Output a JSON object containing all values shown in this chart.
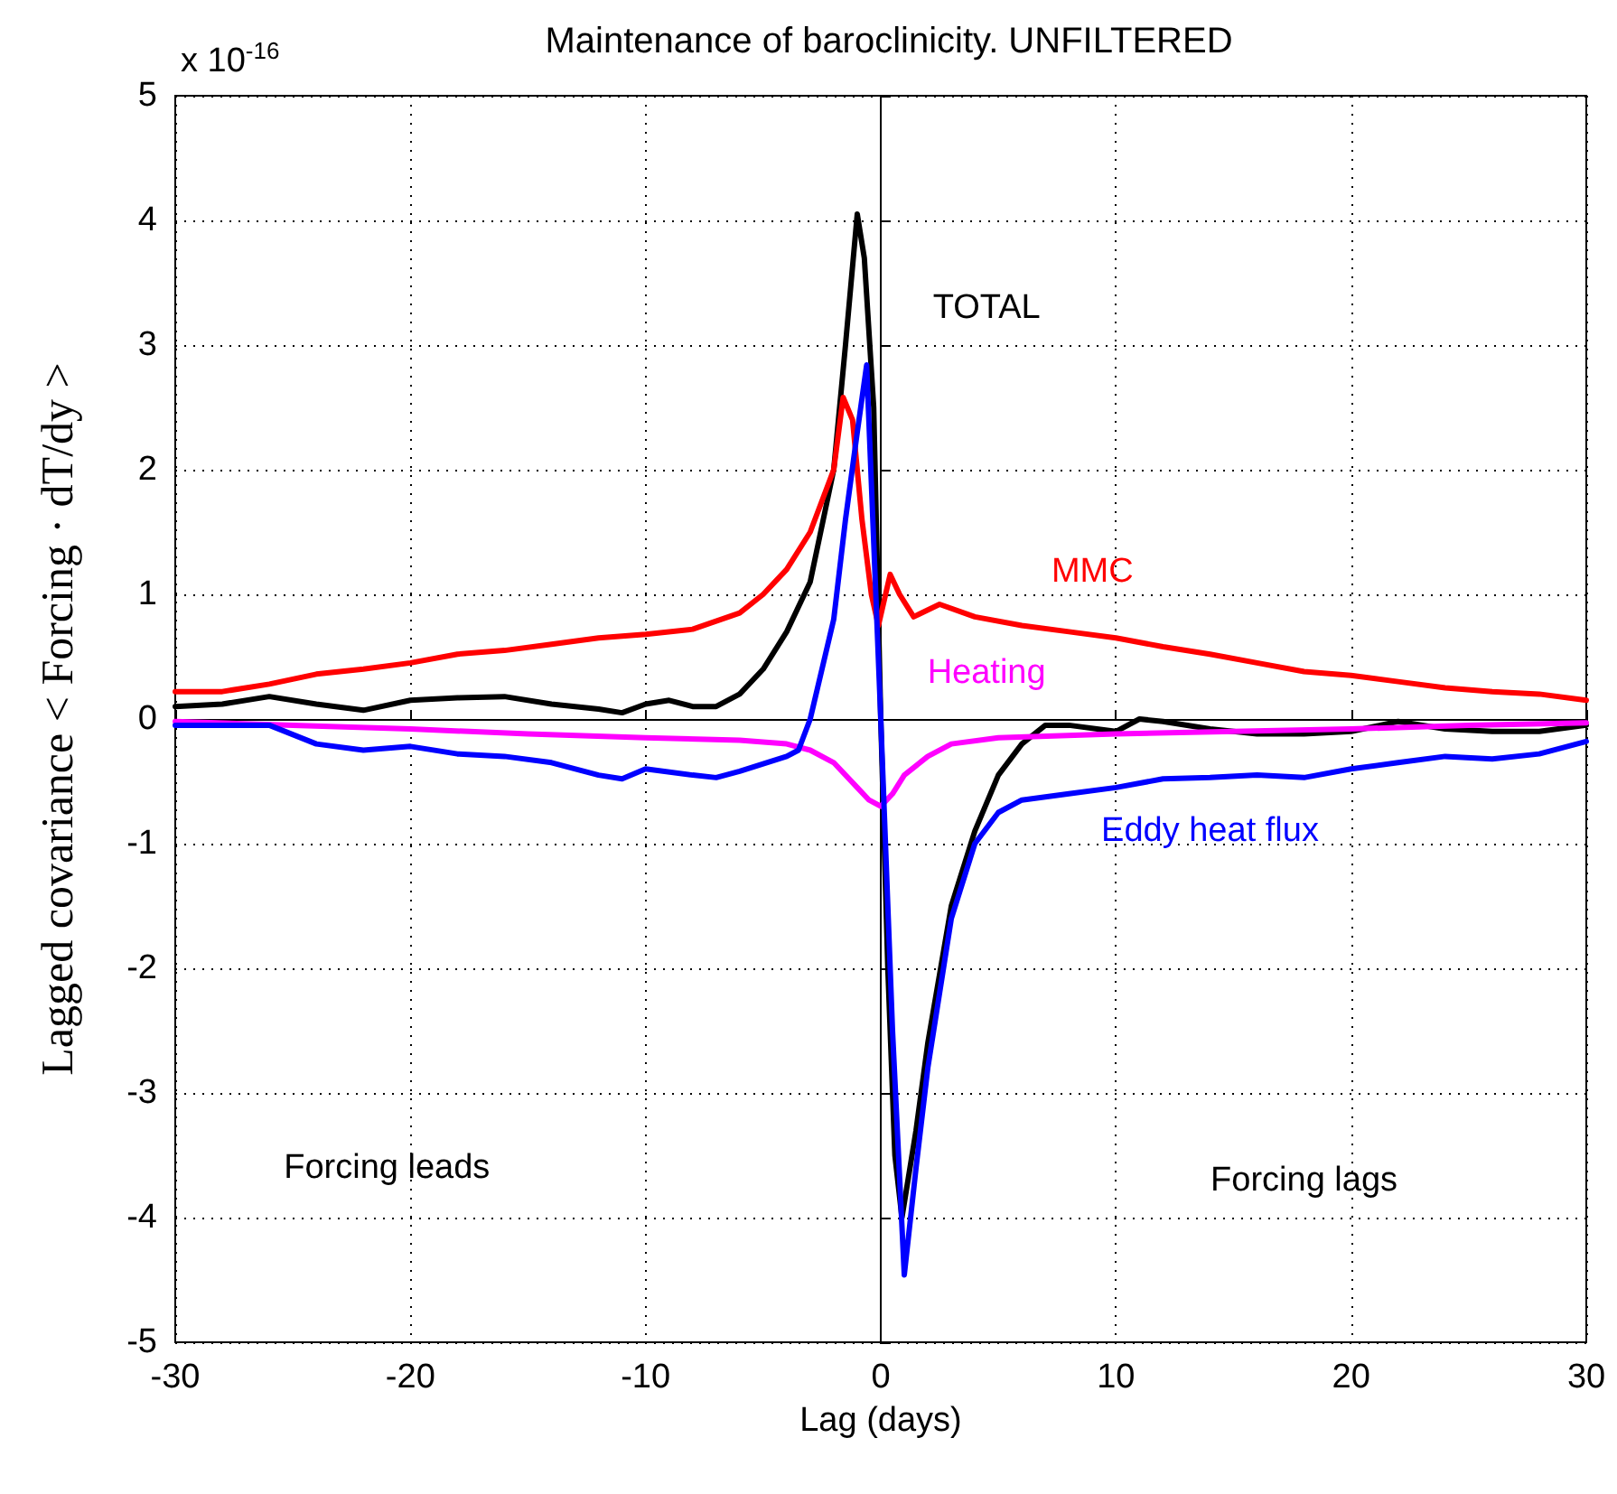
{
  "chart_data": {
    "type": "line",
    "title": "Maintenance of baroclinicity. UNFILTERED",
    "xlabel": "Lag (days)",
    "ylabel": "Lagged covariance < Forcing · dT/dy >",
    "annotations": [
      "x 10$^{-16}$",
      "Forcing leads",
      "Forcing lags"
    ],
    "xlim": [
      -30,
      30
    ],
    "xticks": [
      -30,
      -20,
      -10,
      0,
      10,
      20,
      30
    ],
    "ylim": [
      -5,
      5
    ],
    "yticks": [
      -5,
      -4,
      -3,
      -2,
      -1,
      0,
      1,
      2,
      3,
      4,
      5
    ],
    "grid": true,
    "line_style": "solid",
    "marker": "none",
    "series": [
      {
        "name": "TOTAL",
        "color": "#000000",
        "x": [
          -30,
          -28,
          -26,
          -24,
          -22,
          -20,
          -18,
          -16,
          -14,
          -12,
          -11,
          -10,
          -9,
          -8,
          -7,
          -6,
          -5,
          -4,
          -3,
          -2,
          -1.5,
          -1,
          -0.7,
          -0.3,
          0,
          0.3,
          0.6,
          0.9,
          1.5,
          2,
          3,
          4,
          5,
          6,
          7,
          8,
          10,
          11,
          12,
          14,
          16,
          18,
          20,
          22,
          24,
          26,
          28,
          30
        ],
        "values": [
          0.1,
          0.12,
          0.18,
          0.12,
          0.07,
          0.15,
          0.17,
          0.18,
          0.12,
          0.08,
          0.05,
          0.12,
          0.15,
          0.1,
          0.1,
          0.2,
          0.4,
          0.7,
          1.1,
          2.0,
          3.0,
          4.05,
          3.7,
          2.5,
          0,
          -2,
          -3.5,
          -4.0,
          -3.3,
          -2.6,
          -1.5,
          -0.9,
          -0.45,
          -0.2,
          -0.05,
          -0.05,
          -0.1,
          0,
          -0.02,
          -0.08,
          -0.12,
          -0.12,
          -0.1,
          -0.02,
          -0.08,
          -0.1,
          -0.1,
          -0.05
        ]
      },
      {
        "name": "MMC",
        "color": "#ff0000",
        "x": [
          -30,
          -28,
          -26,
          -24,
          -22,
          -20,
          -18,
          -16,
          -14,
          -12,
          -10,
          -8,
          -6,
          -5,
          -4,
          -3,
          -2,
          -1.6,
          -1.2,
          -0.8,
          -0.4,
          -0.1,
          0.4,
          0.8,
          1.4,
          2.5,
          4,
          6,
          8,
          10,
          12,
          14,
          16,
          18,
          20,
          22,
          24,
          26,
          28,
          30
        ],
        "values": [
          0.22,
          0.22,
          0.28,
          0.36,
          0.4,
          0.45,
          0.52,
          0.55,
          0.6,
          0.65,
          0.68,
          0.72,
          0.85,
          1.0,
          1.2,
          1.5,
          2.0,
          2.58,
          2.4,
          1.6,
          1.0,
          0.75,
          1.16,
          1.0,
          0.82,
          0.92,
          0.82,
          0.75,
          0.7,
          0.65,
          0.58,
          0.52,
          0.45,
          0.38,
          0.35,
          0.3,
          0.25,
          0.22,
          0.2,
          0.15
        ]
      },
      {
        "name": "Heating",
        "color": "#ff00ff",
        "x": [
          -30,
          -25,
          -20,
          -15,
          -10,
          -6,
          -4,
          -3,
          -2,
          -1,
          -0.5,
          0,
          0.5,
          1,
          2,
          3,
          5,
          10,
          15,
          20,
          25,
          30
        ],
        "values": [
          -0.02,
          -0.05,
          -0.08,
          -0.12,
          -0.15,
          -0.17,
          -0.2,
          -0.25,
          -0.35,
          -0.55,
          -0.65,
          -0.7,
          -0.6,
          -0.45,
          -0.3,
          -0.2,
          -0.15,
          -0.12,
          -0.1,
          -0.08,
          -0.05,
          -0.03
        ]
      },
      {
        "name": "Eddy heat flux",
        "color": "#0000ff",
        "x": [
          -30,
          -26,
          -24,
          -22,
          -20,
          -18,
          -16,
          -14,
          -12,
          -11,
          -10,
          -8,
          -7,
          -6,
          -4,
          -3.5,
          -3,
          -2,
          -1.5,
          -1,
          -0.6,
          0,
          0.5,
          1,
          1.5,
          2,
          3,
          4,
          5,
          6,
          8,
          10,
          12,
          14,
          16,
          18,
          20,
          22,
          24,
          26,
          28,
          30
        ],
        "values": [
          -0.05,
          -0.05,
          -0.2,
          -0.25,
          -0.22,
          -0.28,
          -0.3,
          -0.35,
          -0.45,
          -0.48,
          -0.4,
          -0.45,
          -0.47,
          -0.42,
          -0.3,
          -0.25,
          0,
          0.8,
          1.6,
          2.3,
          2.84,
          0,
          -2.5,
          -4.46,
          -3.6,
          -2.8,
          -1.6,
          -1.0,
          -0.75,
          -0.65,
          -0.6,
          -0.55,
          -0.48,
          -0.47,
          -0.45,
          -0.47,
          -0.4,
          -0.35,
          -0.3,
          -0.32,
          -0.28,
          -0.18
        ]
      }
    ]
  }
}
